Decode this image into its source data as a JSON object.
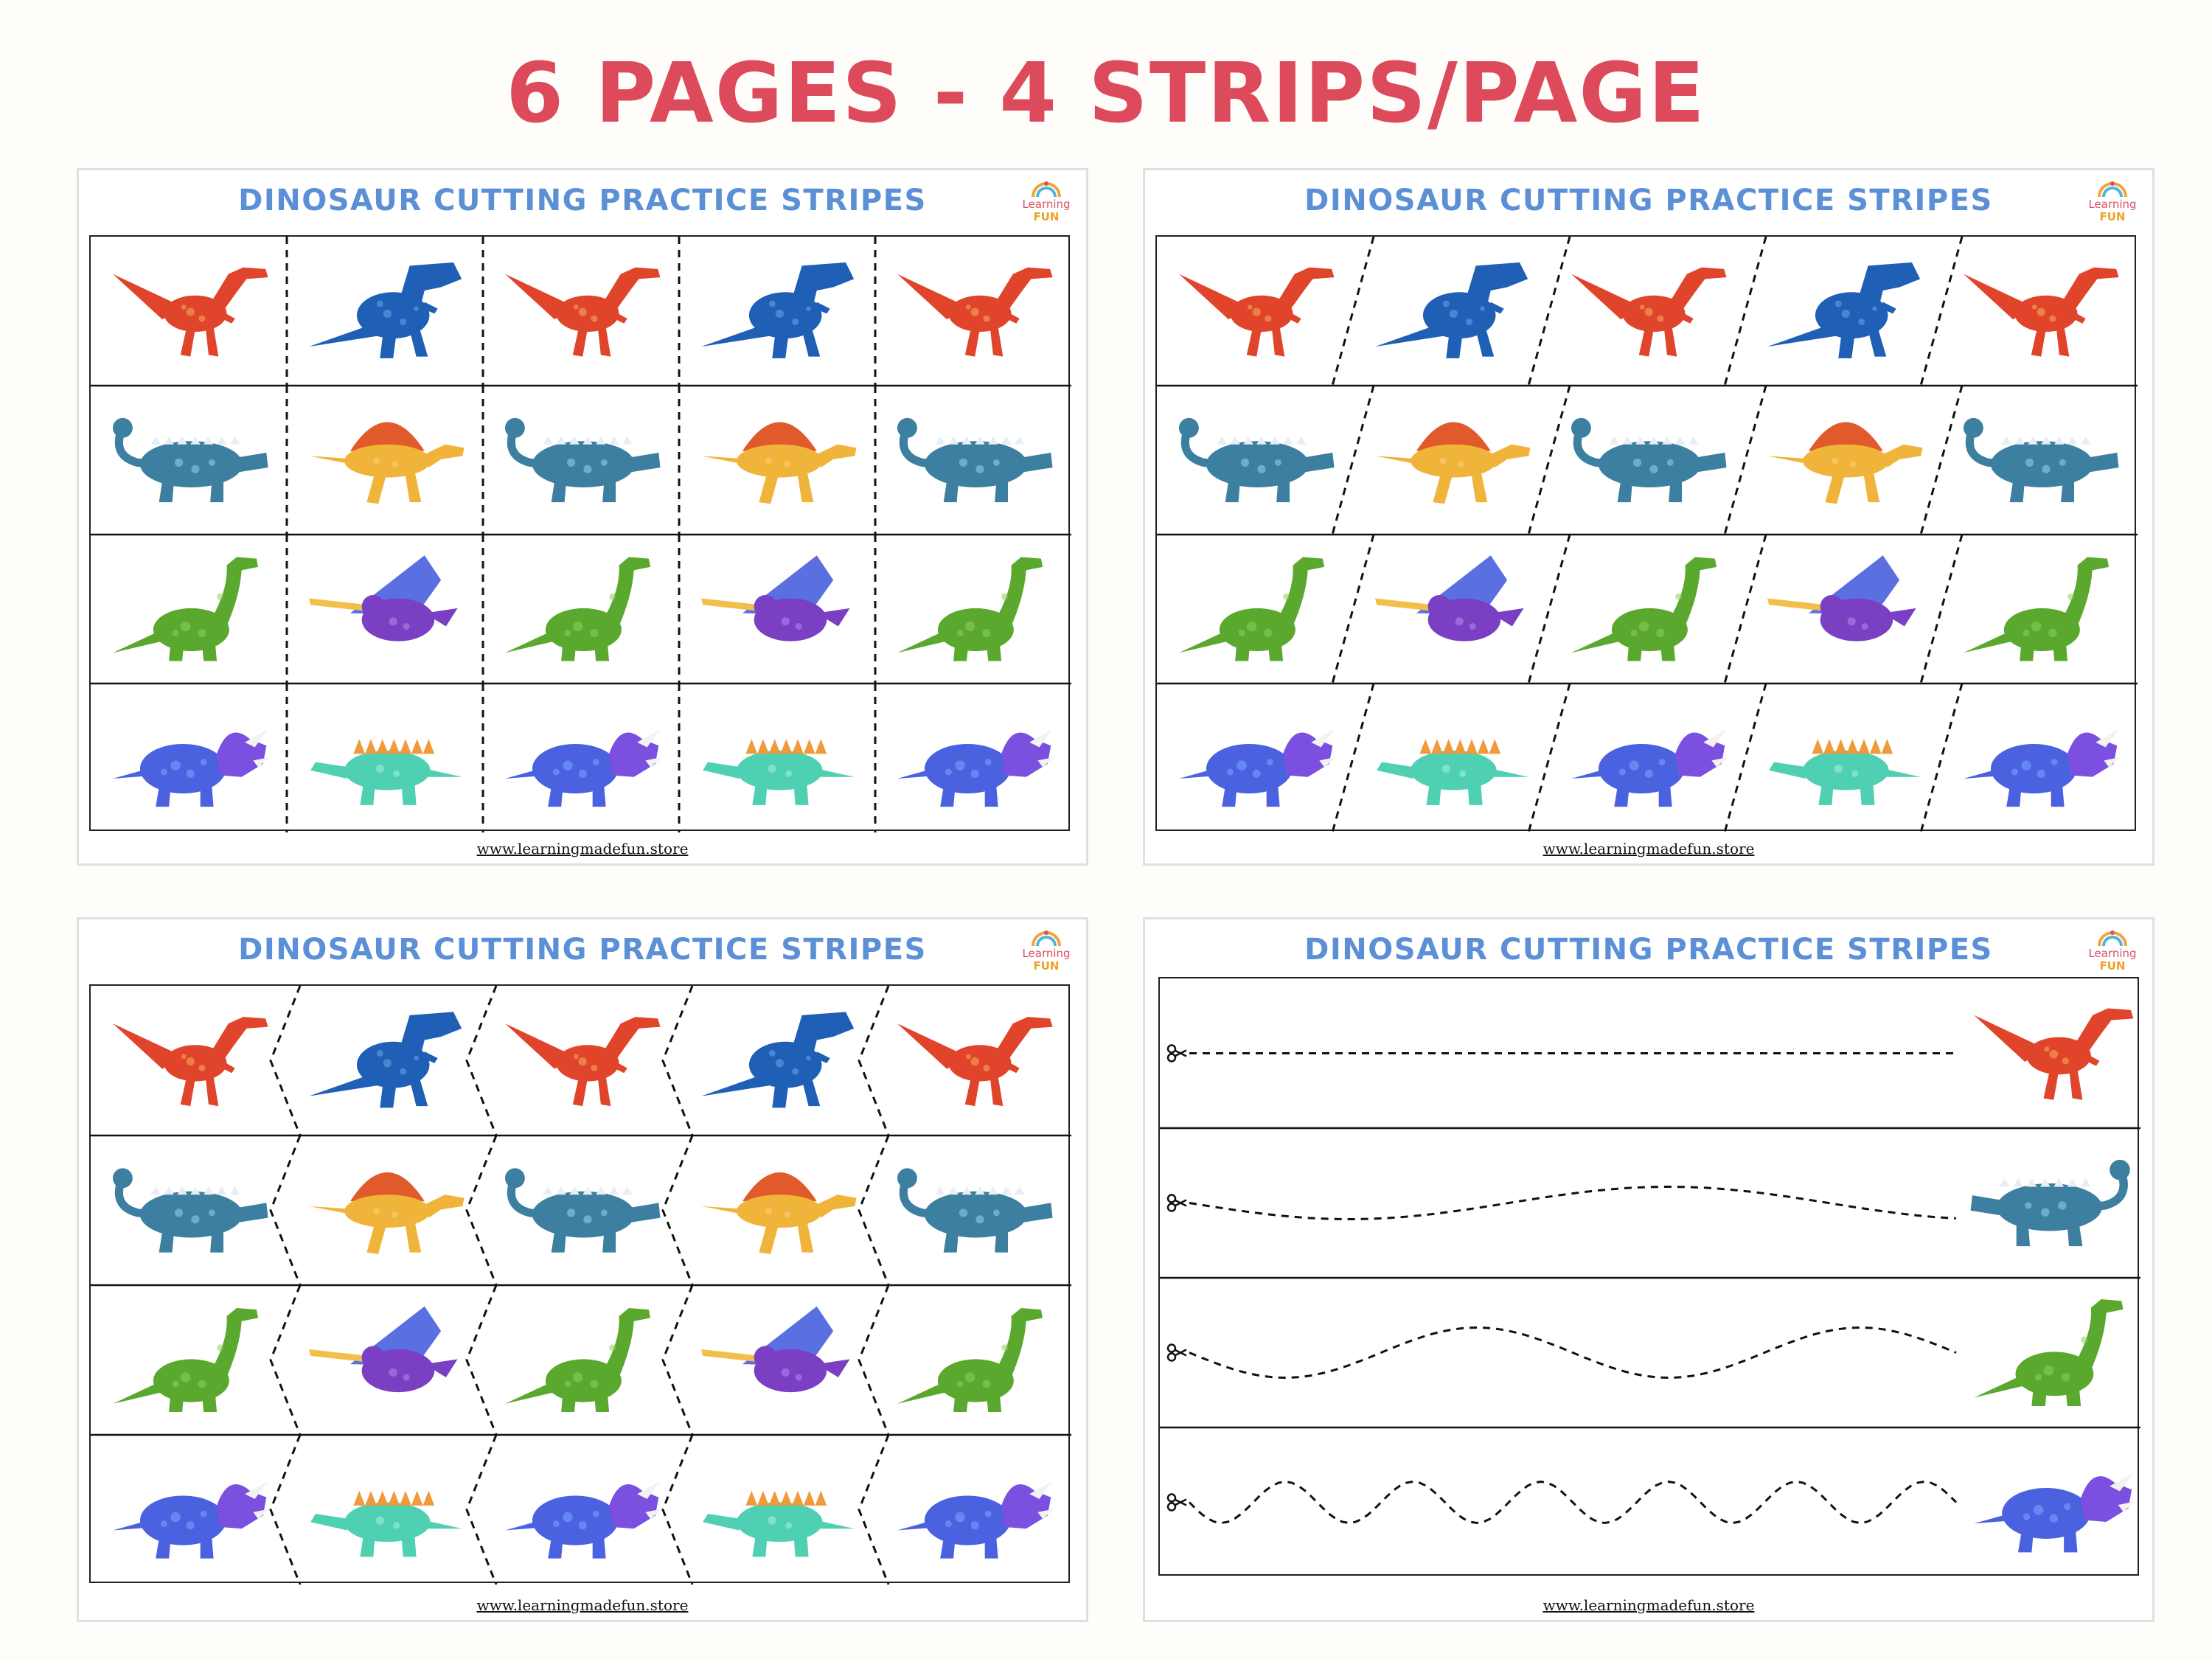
{
  "headline": "6 PAGES - 4 STRIPS/PAGE",
  "sheets": [
    {
      "title": "DINOSAUR CUTTING PRACTICE STRIPES",
      "footer": "www.learningmadefun.store",
      "cut_style": "straight"
    },
    {
      "title": "DINOSAUR CUTTING PRACTICE STRIPES",
      "footer": "www.learningmadefun.store",
      "cut_style": "diagonal"
    },
    {
      "title": "DINOSAUR CUTTING PRACTICE STRIPES",
      "footer": "www.learningmadefun.store",
      "cut_style": "zigzag"
    },
    {
      "title": "DINOSAUR CUTTING PRACTICE STRIPES",
      "footer": "www.learningmadefun.store",
      "cut_style": "lines"
    }
  ],
  "logo": {
    "line1": "Learning",
    "line2": "FUN"
  },
  "dino_rows": [
    [
      "velociraptor",
      "t-rex",
      "velociraptor",
      "t-rex",
      "velociraptor"
    ],
    [
      "ankylosaurus",
      "spinosaurus",
      "ankylosaurus",
      "spinosaurus",
      "ankylosaurus"
    ],
    [
      "brachiosaurus",
      "pterodactyl",
      "brachiosaurus",
      "pterodactyl",
      "brachiosaurus"
    ],
    [
      "triceratops",
      "stegosaurus",
      "triceratops",
      "stegosaurus",
      "triceratops"
    ]
  ],
  "line_rows": [
    {
      "dino": "velociraptor",
      "path": "straight"
    },
    {
      "dino": "ankylosaurus",
      "path": "gentle-wave"
    },
    {
      "dino": "brachiosaurus",
      "path": "wave"
    },
    {
      "dino": "triceratops",
      "path": "tight-wave"
    }
  ],
  "colors": {
    "headline": "#dc4a5c",
    "sheet_title": "#5b8fd6",
    "velociraptor": "#e0452b",
    "t-rex": "#1f5fb5",
    "ankylosaurus": "#3d7fa0",
    "spinosaurus": "#f0b43a",
    "brachiosaurus": "#5aa82e",
    "pterodactyl": "#7b3fc4",
    "triceratops": "#4a62e0",
    "stegosaurus": "#4fd0b2"
  },
  "icons": {
    "cut": "scissors-icon",
    "logo": "rainbow-icon"
  }
}
